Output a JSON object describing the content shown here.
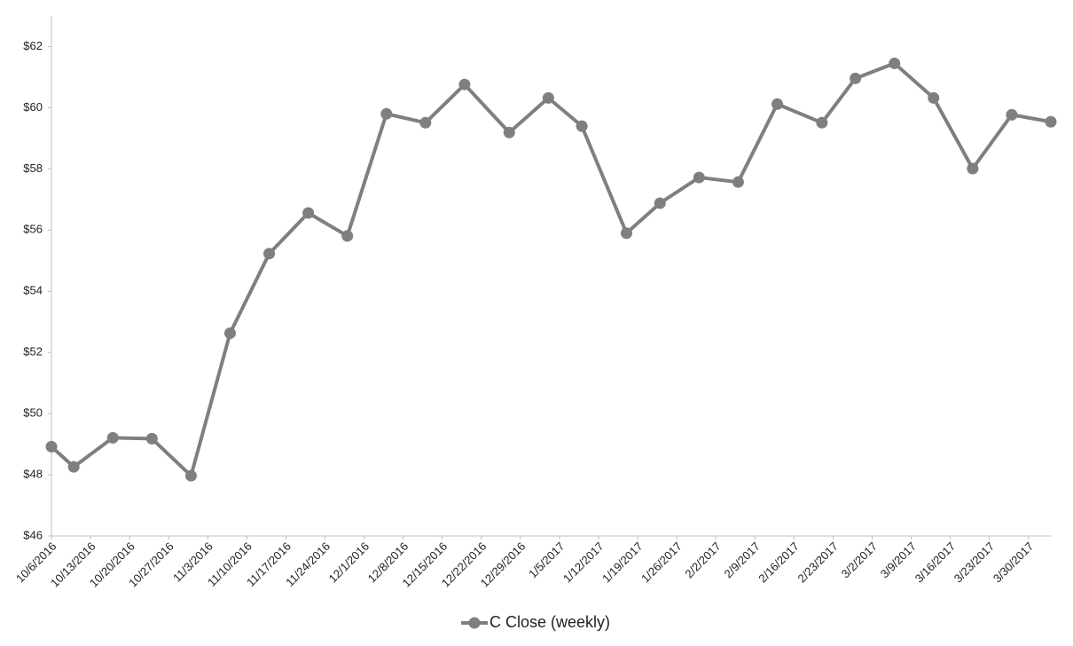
{
  "chart_data": {
    "type": "line",
    "x": [
      "10/6/2016",
      "10/10/2016",
      "10/17/2016",
      "10/24/2016",
      "10/31/2016",
      "11/7/2016",
      "11/14/2016",
      "11/21/2016",
      "11/28/2016",
      "12/5/2016",
      "12/12/2016",
      "12/19/2016",
      "12/27/2016",
      "1/3/2017",
      "1/9/2017",
      "1/17/2017",
      "1/23/2017",
      "1/30/2017",
      "2/6/2017",
      "2/13/2017",
      "2/21/2017",
      "2/27/2017",
      "3/6/2017",
      "3/13/2017",
      "3/20/2017",
      "3/27/2017",
      "4/3/2017"
    ],
    "series": [
      {
        "name": "C Close (weekly)",
        "color": "#7f7f7f",
        "values": [
          48.92,
          48.26,
          49.21,
          49.18,
          47.97,
          52.63,
          55.23,
          56.56,
          55.81,
          59.8,
          59.51,
          60.76,
          59.19,
          60.32,
          59.4,
          55.9,
          56.88,
          57.72,
          57.57,
          60.12,
          59.51,
          60.96,
          61.45,
          60.32,
          58.01,
          59.77,
          59.54
        ]
      }
    ],
    "xlim": [
      "10/6/2016",
      "4/3/2017"
    ],
    "xticks": [
      "10/6/2016",
      "10/13/2016",
      "10/20/2016",
      "10/27/2016",
      "11/3/2016",
      "11/10/2016",
      "11/17/2016",
      "11/24/2016",
      "12/1/2016",
      "12/8/2016",
      "12/15/2016",
      "12/22/2016",
      "12/29/2016",
      "1/5/2017",
      "1/12/2017",
      "1/19/2017",
      "1/26/2017",
      "2/2/2017",
      "2/9/2017",
      "2/16/2017",
      "2/23/2017",
      "3/2/2017",
      "3/9/2017",
      "3/16/2017",
      "3/23/2017",
      "3/30/2017"
    ],
    "ylim": [
      46,
      63
    ],
    "yticks": [
      {
        "value": 46,
        "label": "$46"
      },
      {
        "value": 48,
        "label": "$48"
      },
      {
        "value": 50,
        "label": "$50"
      },
      {
        "value": 52,
        "label": "$52"
      },
      {
        "value": 54,
        "label": "$54"
      },
      {
        "value": 56,
        "label": "$56"
      },
      {
        "value": 58,
        "label": "$58"
      },
      {
        "value": 60,
        "label": "$60"
      },
      {
        "value": 62,
        "label": "$62"
      }
    ],
    "grid": false,
    "legend": "bottom"
  }
}
